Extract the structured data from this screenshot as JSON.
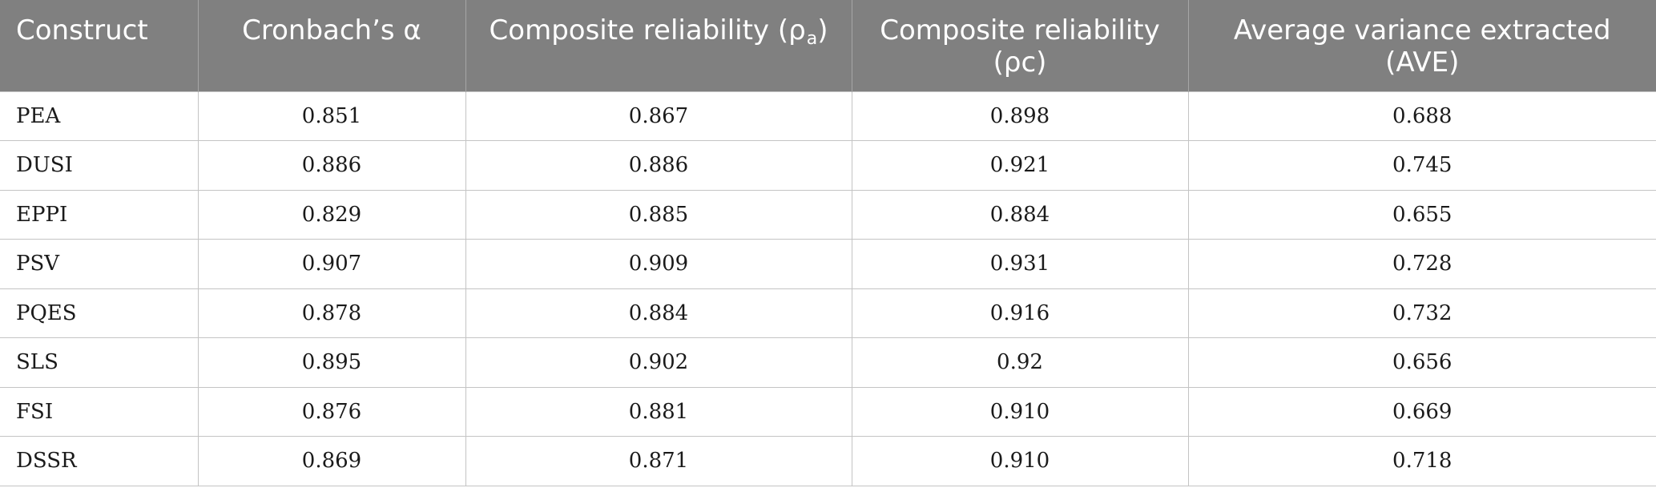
{
  "table": {
    "headers": [
      {
        "text": "Construct"
      },
      {
        "text": "Cronbach’s α"
      },
      {
        "text": "Composite reliability (ρ",
        "sub": "a",
        "after": ")"
      },
      {
        "text": "Composite reliability (ρc)"
      },
      {
        "text": "Average variance extracted (AVE)"
      }
    ],
    "rows": [
      [
        "PEA",
        "0.851",
        "0.867",
        "0.898",
        "0.688"
      ],
      [
        "DUSI",
        "0.886",
        "0.886",
        "0.921",
        "0.745"
      ],
      [
        "EPPI",
        "0.829",
        "0.885",
        "0.884",
        "0.655"
      ],
      [
        "PSV",
        "0.907",
        "0.909",
        "0.931",
        "0.728"
      ],
      [
        "PQES",
        "0.878",
        "0.884",
        "0.916",
        "0.732"
      ],
      [
        "SLS",
        "0.895",
        "0.902",
        "0.92",
        "0.656"
      ],
      [
        "FSI",
        "0.876",
        "0.881",
        "0.910",
        "0.669"
      ],
      [
        "DSSR",
        "0.869",
        "0.871",
        "0.910",
        "0.718"
      ]
    ]
  }
}
